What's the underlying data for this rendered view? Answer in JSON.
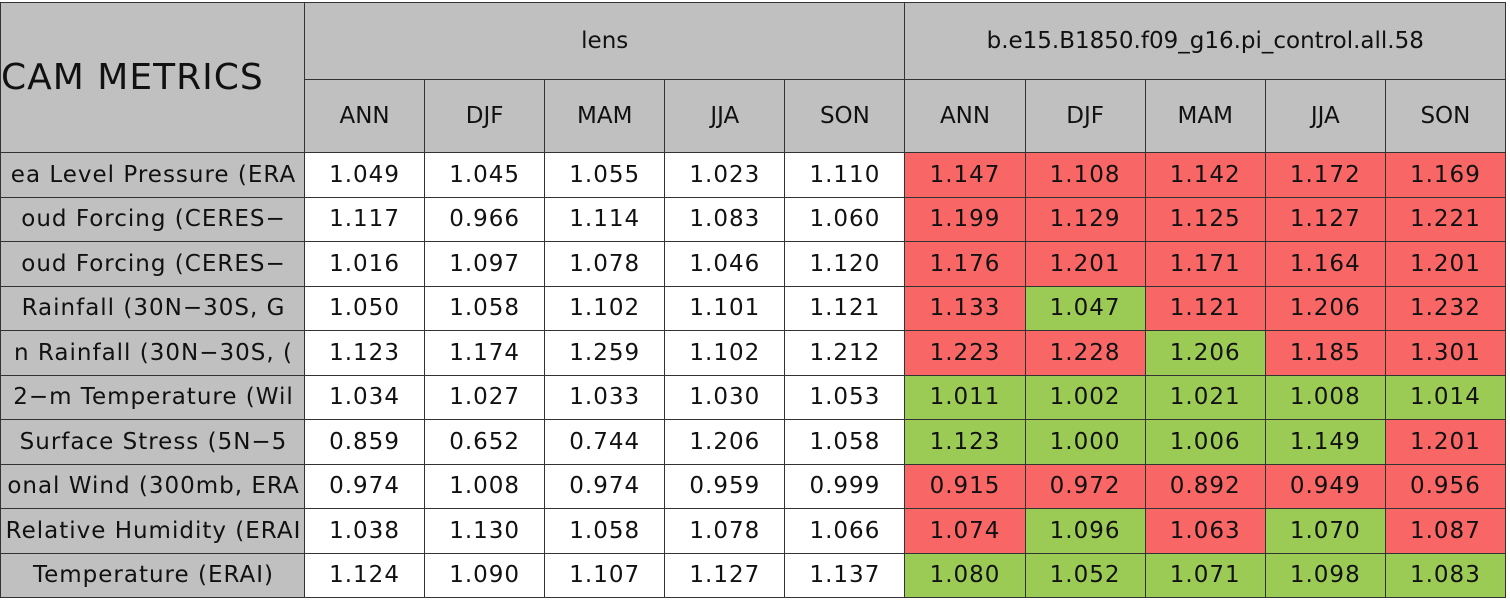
{
  "header": {
    "title": "CAM METRICS",
    "groups": [
      {
        "name": "lens",
        "seasons": [
          "ANN",
          "DJF",
          "MAM",
          "JJA",
          "SON"
        ]
      },
      {
        "name": "b.e15.B1850.f09_g16.pi_control.all.58",
        "seasons": [
          "ANN",
          "DJF",
          "MAM",
          "JJA",
          "SON"
        ]
      }
    ]
  },
  "colors": {
    "plain": "#ffffff",
    "worse": "#f96666",
    "better": "#9ccb55"
  },
  "rows": [
    {
      "label": "ea Level Pressure (ERA",
      "cells": [
        "1.049",
        "1.045",
        "1.055",
        "1.023",
        "1.110",
        "1.147",
        "1.108",
        "1.142",
        "1.172",
        "1.169"
      ],
      "shade": [
        "plain",
        "plain",
        "plain",
        "plain",
        "plain",
        "worse",
        "worse",
        "worse",
        "worse",
        "worse"
      ]
    },
    {
      "label": "oud Forcing (CERES−",
      "cells": [
        "1.117",
        "0.966",
        "1.114",
        "1.083",
        "1.060",
        "1.199",
        "1.129",
        "1.125",
        "1.127",
        "1.221"
      ],
      "shade": [
        "plain",
        "plain",
        "plain",
        "plain",
        "plain",
        "worse",
        "worse",
        "worse",
        "worse",
        "worse"
      ]
    },
    {
      "label": "oud Forcing (CERES−",
      "cells": [
        "1.016",
        "1.097",
        "1.078",
        "1.046",
        "1.120",
        "1.176",
        "1.201",
        "1.171",
        "1.164",
        "1.201"
      ],
      "shade": [
        "plain",
        "plain",
        "plain",
        "plain",
        "plain",
        "worse",
        "worse",
        "worse",
        "worse",
        "worse"
      ]
    },
    {
      "label": "Rainfall (30N−30S, G",
      "cells": [
        "1.050",
        "1.058",
        "1.102",
        "1.101",
        "1.121",
        "1.133",
        "1.047",
        "1.121",
        "1.206",
        "1.232"
      ],
      "shade": [
        "plain",
        "plain",
        "plain",
        "plain",
        "plain",
        "worse",
        "better",
        "worse",
        "worse",
        "worse"
      ]
    },
    {
      "label": "n Rainfall (30N−30S, (",
      "cells": [
        "1.123",
        "1.174",
        "1.259",
        "1.102",
        "1.212",
        "1.223",
        "1.228",
        "1.206",
        "1.185",
        "1.301"
      ],
      "shade": [
        "plain",
        "plain",
        "plain",
        "plain",
        "plain",
        "worse",
        "worse",
        "better",
        "worse",
        "worse"
      ]
    },
    {
      "label": "2−m Temperature (Wil",
      "cells": [
        "1.034",
        "1.027",
        "1.033",
        "1.030",
        "1.053",
        "1.011",
        "1.002",
        "1.021",
        "1.008",
        "1.014"
      ],
      "shade": [
        "plain",
        "plain",
        "plain",
        "plain",
        "plain",
        "better",
        "better",
        "better",
        "better",
        "better"
      ]
    },
    {
      "label": "Surface Stress (5N−5",
      "cells": [
        "0.859",
        "0.652",
        "0.744",
        "1.206",
        "1.058",
        "1.123",
        "1.000",
        "1.006",
        "1.149",
        "1.201"
      ],
      "shade": [
        "plain",
        "plain",
        "plain",
        "plain",
        "plain",
        "better",
        "better",
        "better",
        "better",
        "worse"
      ]
    },
    {
      "label": "onal Wind (300mb, ERA",
      "cells": [
        "0.974",
        "1.008",
        "0.974",
        "0.959",
        "0.999",
        "0.915",
        "0.972",
        "0.892",
        "0.949",
        "0.956"
      ],
      "shade": [
        "plain",
        "plain",
        "plain",
        "plain",
        "plain",
        "worse",
        "worse",
        "worse",
        "worse",
        "worse"
      ]
    },
    {
      "label": "Relative Humidity (ERAI",
      "cells": [
        "1.038",
        "1.130",
        "1.058",
        "1.078",
        "1.066",
        "1.074",
        "1.096",
        "1.063",
        "1.070",
        "1.087"
      ],
      "shade": [
        "plain",
        "plain",
        "plain",
        "plain",
        "plain",
        "worse",
        "better",
        "worse",
        "better",
        "worse"
      ]
    },
    {
      "label": "Temperature (ERAI)",
      "cells": [
        "1.124",
        "1.090",
        "1.107",
        "1.127",
        "1.137",
        "1.080",
        "1.052",
        "1.071",
        "1.098",
        "1.083"
      ],
      "shade": [
        "plain",
        "plain",
        "plain",
        "plain",
        "plain",
        "better",
        "better",
        "better",
        "better",
        "better"
      ]
    }
  ]
}
